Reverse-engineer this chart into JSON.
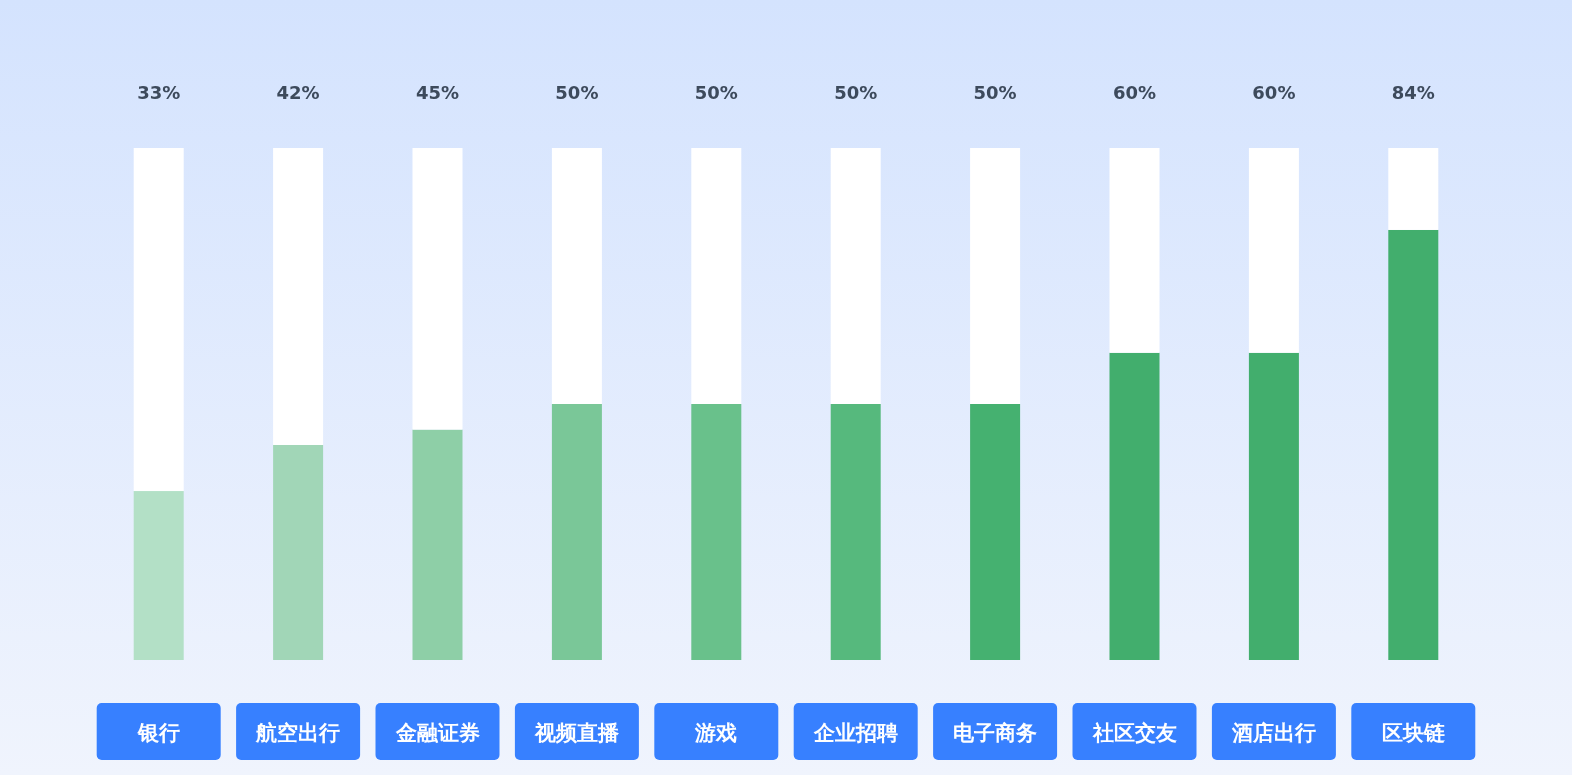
{
  "chart_data": {
    "type": "bar",
    "stacked": true,
    "categories": [
      "银行",
      "航空出行",
      "金融证券",
      "视频直播",
      "游戏",
      "企业招聘",
      "电子商务",
      "社区交友",
      "酒店出行",
      "区块链"
    ],
    "series": [
      {
        "colors": [
          "#b3e0c6",
          "#a1d6b7",
          "#8ecfa7",
          "#7ac798",
          "#69c18b",
          "#56b97d",
          "#45b170",
          "#42ae6d",
          "#42ae6d",
          "#42ae6d"
        ],
        "values": [
          33,
          42,
          45,
          50,
          50,
          50,
          50,
          60,
          60,
          84
        ],
        "value_labels": [
          "33%",
          "42%",
          "45%",
          "50%",
          "50%",
          "50%",
          "50%",
          "60%",
          "60%",
          "84%"
        ]
      },
      {
        "color": "#ffffff",
        "values": [
          67,
          58,
          55,
          50,
          50,
          50,
          50,
          40,
          40,
          16
        ]
      }
    ]
  }
}
